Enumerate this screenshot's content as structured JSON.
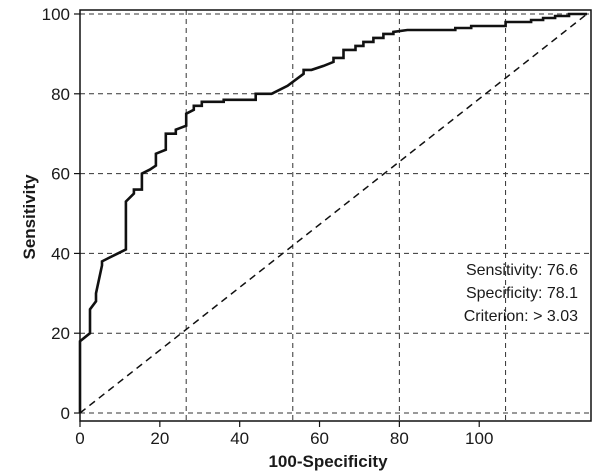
{
  "chart_data": {
    "type": "line",
    "xlabel": "100-Specificity",
    "ylabel": "Sensitivity",
    "xlim": [
      0,
      128
    ],
    "ylim": [
      -2,
      101
    ],
    "x_ticks": [
      0,
      20,
      40,
      60,
      80,
      100
    ],
    "x_tick_labels": [
      "0",
      "20",
      "40",
      "60",
      "80",
      "100"
    ],
    "y_ticks": [
      0,
      20,
      40,
      60,
      80,
      100
    ],
    "y_tick_labels": [
      "0",
      "20",
      "40",
      "60",
      "80",
      "100"
    ],
    "grid": true,
    "grid_x": [
      0,
      26.6,
      53.3,
      80,
      106.6
    ],
    "grid_y": [
      0,
      20,
      40,
      60,
      80,
      100
    ],
    "series": [
      {
        "style": "solid",
        "color": "#111111",
        "x": [
          0,
          0,
          2.5,
          2.5,
          4.0,
          4.0,
          5.5,
          5.5,
          7.5,
          9.5,
          11.5,
          11.5,
          13.5,
          13.5,
          15.5,
          15.5,
          17.5,
          19.0,
          19.0,
          21.5,
          21.5,
          24.0,
          24.0,
          26.6,
          26.6,
          28.5,
          28.5,
          30.5,
          30.5,
          32.5,
          36.0,
          36.0,
          40.0,
          44.0,
          44.0,
          48.0,
          52.0,
          56.0,
          56.0,
          58.0,
          61.0,
          63.5,
          63.5,
          66.0,
          66.0,
          69.0,
          69.0,
          71.0,
          71.0,
          73.5,
          73.5,
          76.0,
          76.0,
          78.5,
          78.5,
          82.0,
          90.0,
          94.0,
          94.0,
          98.0,
          98.0,
          106.6,
          106.6,
          113.0,
          113.0,
          116.0,
          116.0,
          119.0,
          119.0,
          122.5,
          122.5,
          127.0
        ],
        "y": [
          0,
          18,
          20,
          26,
          28,
          30,
          37,
          38,
          39,
          40,
          41,
          53,
          55,
          56,
          56,
          60,
          61,
          62,
          65,
          66,
          70,
          70,
          71,
          72,
          75,
          76,
          77,
          77,
          78,
          78,
          78,
          78.5,
          78.5,
          78.5,
          80,
          80,
          82,
          85,
          86,
          86,
          87,
          88,
          89,
          89,
          91,
          91,
          92,
          92,
          93,
          93,
          94,
          94,
          95,
          95,
          95.5,
          96,
          96,
          96,
          96.5,
          96.5,
          97,
          97,
          98,
          98,
          98.5,
          98.5,
          99,
          99,
          99.5,
          99.5,
          100,
          100
        ]
      },
      {
        "style": "dashed",
        "color": "#111111",
        "x": [
          0,
          127
        ],
        "y": [
          0,
          100
        ]
      }
    ],
    "annotations": [
      "Sensitivity: 76.6",
      "Specificity: 78.1",
      "Criterion: > 3.03"
    ]
  }
}
